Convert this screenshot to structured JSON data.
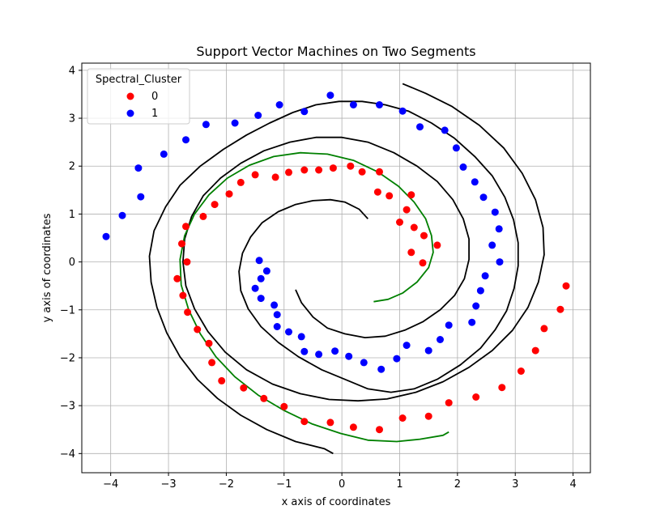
{
  "chart_data": {
    "type": "scatter",
    "title": "Support Vector Machines on Two Segments",
    "xlabel": "x axis of coordinates",
    "ylabel": "y axis of coordinates",
    "xlim": [
      -4.5,
      4.3
    ],
    "ylim": [
      -4.4,
      4.15
    ],
    "xticks": [
      -4,
      -3,
      -2,
      -1,
      0,
      1,
      2,
      3,
      4
    ],
    "yticks": [
      -4,
      -3,
      -2,
      -1,
      0,
      1,
      2,
      3,
      4
    ],
    "grid": true,
    "legend": {
      "title": "Spectral_Cluster",
      "placement": "top-left",
      "entries": [
        {
          "label": "0",
          "color": "#ff0000"
        },
        {
          "label": "1",
          "color": "#0000ff"
        }
      ]
    },
    "series": [
      {
        "name": "0",
        "color": "#ff0000",
        "points": [
          [
            0.15,
            2.0
          ],
          [
            -0.15,
            1.96
          ],
          [
            -0.4,
            1.92
          ],
          [
            -0.65,
            1.92
          ],
          [
            -0.92,
            1.87
          ],
          [
            -1.15,
            1.77
          ],
          [
            -1.5,
            1.82
          ],
          [
            -1.75,
            1.66
          ],
          [
            -1.95,
            1.42
          ],
          [
            -2.2,
            1.2
          ],
          [
            -2.4,
            0.95
          ],
          [
            -2.7,
            0.74
          ],
          [
            -2.77,
            0.38
          ],
          [
            -2.68,
            0.0
          ],
          [
            -2.85,
            -0.35
          ],
          [
            -2.75,
            -0.7
          ],
          [
            -2.67,
            -1.05
          ],
          [
            -2.5,
            -1.41
          ],
          [
            -2.3,
            -1.7
          ],
          [
            -2.25,
            -2.1
          ],
          [
            -2.08,
            -2.48
          ],
          [
            -1.7,
            -2.63
          ],
          [
            -1.35,
            -2.85
          ],
          [
            -1.0,
            -3.02
          ],
          [
            -0.65,
            -3.33
          ],
          [
            -0.2,
            -3.35
          ],
          [
            0.2,
            -3.45
          ],
          [
            0.65,
            -3.5
          ],
          [
            1.05,
            -3.26
          ],
          [
            1.5,
            -3.22
          ],
          [
            1.85,
            -2.94
          ],
          [
            2.32,
            -2.82
          ],
          [
            2.77,
            -2.62
          ],
          [
            3.1,
            -2.28
          ],
          [
            3.35,
            -1.85
          ],
          [
            3.5,
            -1.39
          ],
          [
            3.78,
            -0.99
          ],
          [
            3.88,
            -0.5
          ],
          [
            0.35,
            1.88
          ],
          [
            0.65,
            1.88
          ],
          [
            0.62,
            1.46
          ],
          [
            0.82,
            1.38
          ],
          [
            1.2,
            1.4
          ],
          [
            1.12,
            1.09
          ],
          [
            1.0,
            0.83
          ],
          [
            1.25,
            0.72
          ],
          [
            1.42,
            0.55
          ],
          [
            1.65,
            0.35
          ],
          [
            1.2,
            0.2
          ],
          [
            1.4,
            -0.02
          ]
        ]
      },
      {
        "name": "1",
        "color": "#0000ff",
        "points": [
          [
            -4.08,
            0.53
          ],
          [
            -3.8,
            0.97
          ],
          [
            -3.48,
            1.36
          ],
          [
            -3.52,
            1.96
          ],
          [
            -3.08,
            2.25
          ],
          [
            -2.7,
            2.55
          ],
          [
            -2.35,
            2.87
          ],
          [
            -1.85,
            2.9
          ],
          [
            -1.45,
            3.06
          ],
          [
            -1.08,
            3.28
          ],
          [
            -0.65,
            3.14
          ],
          [
            -0.2,
            3.48
          ],
          [
            0.2,
            3.28
          ],
          [
            0.65,
            3.28
          ],
          [
            1.05,
            3.15
          ],
          [
            1.35,
            2.82
          ],
          [
            1.78,
            2.75
          ],
          [
            1.98,
            2.38
          ],
          [
            2.1,
            1.98
          ],
          [
            2.3,
            1.67
          ],
          [
            2.45,
            1.35
          ],
          [
            2.65,
            1.04
          ],
          [
            2.72,
            0.69
          ],
          [
            2.6,
            0.35
          ],
          [
            2.73,
            0.0
          ],
          [
            2.48,
            -0.29
          ],
          [
            2.4,
            -0.6
          ],
          [
            2.32,
            -0.92
          ],
          [
            2.25,
            -1.26
          ],
          [
            1.85,
            -1.32
          ],
          [
            1.7,
            -1.62
          ],
          [
            1.5,
            -1.85
          ],
          [
            1.12,
            -1.74
          ],
          [
            0.95,
            -2.02
          ],
          [
            0.68,
            -2.24
          ],
          [
            0.38,
            -2.1
          ],
          [
            0.12,
            -1.97
          ],
          [
            -0.12,
            -1.86
          ],
          [
            -0.4,
            -1.93
          ],
          [
            -0.65,
            -1.87
          ],
          [
            -0.7,
            -1.56
          ],
          [
            -0.92,
            -1.46
          ],
          [
            -1.12,
            -1.35
          ],
          [
            -1.12,
            -1.1
          ],
          [
            -1.17,
            -0.9
          ],
          [
            -1.4,
            -0.76
          ],
          [
            -1.5,
            -0.55
          ],
          [
            -1.4,
            -0.35
          ],
          [
            -1.3,
            -0.19
          ],
          [
            -1.43,
            0.03
          ]
        ]
      },
      {
        "name": "",
        "type": "line",
        "color": "#000000",
        "points": [
          [
            0.45,
            0.9
          ],
          [
            0.3,
            1.1
          ],
          [
            0.05,
            1.25
          ],
          [
            -0.2,
            1.3
          ],
          [
            -0.5,
            1.28
          ],
          [
            -0.8,
            1.2
          ],
          [
            -1.1,
            1.05
          ],
          [
            -1.38,
            0.82
          ],
          [
            -1.58,
            0.52
          ],
          [
            -1.72,
            0.18
          ],
          [
            -1.78,
            -0.2
          ],
          [
            -1.75,
            -0.6
          ],
          [
            -1.62,
            -0.98
          ],
          [
            -1.4,
            -1.35
          ],
          [
            -1.1,
            -1.68
          ],
          [
            -0.75,
            -1.98
          ],
          [
            -0.35,
            -2.25
          ],
          [
            0.05,
            -2.45
          ],
          [
            0.45,
            -2.65
          ],
          [
            0.85,
            -2.72
          ],
          [
            1.25,
            -2.65
          ],
          [
            1.65,
            -2.45
          ],
          [
            2.05,
            -2.15
          ],
          [
            2.4,
            -1.8
          ],
          [
            2.65,
            -1.42
          ],
          [
            2.85,
            -1.02
          ],
          [
            2.98,
            -0.55
          ],
          [
            3.05,
            -0.08
          ],
          [
            3.05,
            0.4
          ],
          [
            2.97,
            0.88
          ],
          [
            2.82,
            1.35
          ],
          [
            2.6,
            1.8
          ],
          [
            2.3,
            2.2
          ],
          [
            1.95,
            2.58
          ],
          [
            1.55,
            2.9
          ],
          [
            1.15,
            3.15
          ],
          [
            0.75,
            3.28
          ],
          [
            0.35,
            3.35
          ],
          [
            -0.05,
            3.35
          ],
          [
            -0.45,
            3.28
          ],
          [
            -0.85,
            3.12
          ],
          [
            -1.25,
            2.9
          ],
          [
            -1.65,
            2.65
          ],
          [
            -2.05,
            2.35
          ],
          [
            -2.45,
            2.0
          ],
          [
            -2.8,
            1.6
          ],
          [
            -3.05,
            1.15
          ],
          [
            -3.25,
            0.65
          ],
          [
            -3.33,
            0.12
          ],
          [
            -3.3,
            -0.42
          ],
          [
            -3.2,
            -0.95
          ],
          [
            -3.03,
            -1.48
          ],
          [
            -2.8,
            -1.98
          ],
          [
            -2.5,
            -2.45
          ],
          [
            -2.15,
            -2.85
          ],
          [
            -1.75,
            -3.2
          ],
          [
            -1.3,
            -3.5
          ],
          [
            -0.8,
            -3.75
          ],
          [
            -0.3,
            -3.9
          ],
          [
            -0.15,
            -4.0
          ]
        ]
      },
      {
        "name": "",
        "type": "line",
        "color": "#000000",
        "points": [
          [
            -0.8,
            -0.58
          ],
          [
            -0.7,
            -0.85
          ],
          [
            -0.5,
            -1.15
          ],
          [
            -0.25,
            -1.38
          ],
          [
            0.05,
            -1.5
          ],
          [
            0.4,
            -1.58
          ],
          [
            0.75,
            -1.55
          ],
          [
            1.1,
            -1.42
          ],
          [
            1.4,
            -1.25
          ],
          [
            1.7,
            -1.0
          ],
          [
            1.95,
            -0.7
          ],
          [
            2.12,
            -0.35
          ],
          [
            2.2,
            0.05
          ],
          [
            2.2,
            0.48
          ],
          [
            2.1,
            0.9
          ],
          [
            1.92,
            1.3
          ],
          [
            1.65,
            1.68
          ],
          [
            1.3,
            2.0
          ],
          [
            0.9,
            2.28
          ],
          [
            0.45,
            2.5
          ],
          [
            0.0,
            2.6
          ],
          [
            -0.45,
            2.6
          ],
          [
            -0.9,
            2.5
          ],
          [
            -1.35,
            2.32
          ],
          [
            -1.75,
            2.06
          ],
          [
            -2.1,
            1.75
          ],
          [
            -2.4,
            1.38
          ],
          [
            -2.6,
            0.95
          ],
          [
            -2.72,
            0.48
          ],
          [
            -2.75,
            0.0
          ],
          [
            -2.7,
            -0.5
          ],
          [
            -2.55,
            -0.98
          ],
          [
            -2.32,
            -1.45
          ],
          [
            -2.02,
            -1.88
          ],
          [
            -1.65,
            -2.25
          ],
          [
            -1.2,
            -2.55
          ],
          [
            -0.72,
            -2.75
          ],
          [
            -0.22,
            -2.87
          ],
          [
            0.28,
            -2.9
          ],
          [
            0.78,
            -2.86
          ],
          [
            1.28,
            -2.72
          ],
          [
            1.75,
            -2.5
          ],
          [
            2.2,
            -2.2
          ],
          [
            2.6,
            -1.85
          ],
          [
            2.95,
            -1.43
          ],
          [
            3.22,
            -0.95
          ],
          [
            3.4,
            -0.42
          ],
          [
            3.5,
            0.15
          ],
          [
            3.48,
            0.72
          ],
          [
            3.35,
            1.3
          ],
          [
            3.12,
            1.85
          ],
          [
            2.8,
            2.38
          ],
          [
            2.38,
            2.85
          ],
          [
            1.9,
            3.25
          ],
          [
            1.45,
            3.52
          ],
          [
            1.05,
            3.72
          ]
        ]
      },
      {
        "name": "",
        "type": "line",
        "color": "#008000",
        "points": [
          [
            0.55,
            -0.83
          ],
          [
            0.8,
            -0.78
          ],
          [
            1.05,
            -0.65
          ],
          [
            1.3,
            -0.42
          ],
          [
            1.5,
            -0.12
          ],
          [
            1.58,
            0.2
          ],
          [
            1.55,
            0.55
          ],
          [
            1.45,
            0.9
          ],
          [
            1.25,
            1.25
          ],
          [
            0.98,
            1.58
          ],
          [
            0.62,
            1.88
          ],
          [
            0.2,
            2.12
          ],
          [
            -0.25,
            2.25
          ],
          [
            -0.72,
            2.28
          ],
          [
            -1.18,
            2.2
          ],
          [
            -1.6,
            2.02
          ],
          [
            -1.98,
            1.75
          ],
          [
            -2.3,
            1.4
          ],
          [
            -2.55,
            1.0
          ],
          [
            -2.72,
            0.55
          ],
          [
            -2.8,
            0.05
          ],
          [
            -2.78,
            -0.48
          ],
          [
            -2.65,
            -1.0
          ],
          [
            -2.45,
            -1.5
          ],
          [
            -2.18,
            -1.98
          ],
          [
            -1.85,
            -2.4
          ],
          [
            -1.45,
            -2.78
          ],
          [
            -1.0,
            -3.1
          ],
          [
            -0.52,
            -3.38
          ],
          [
            -0.02,
            -3.58
          ],
          [
            0.45,
            -3.72
          ],
          [
            0.95,
            -3.75
          ],
          [
            1.35,
            -3.7
          ],
          [
            1.75,
            -3.62
          ],
          [
            1.85,
            -3.55
          ]
        ]
      }
    ]
  }
}
